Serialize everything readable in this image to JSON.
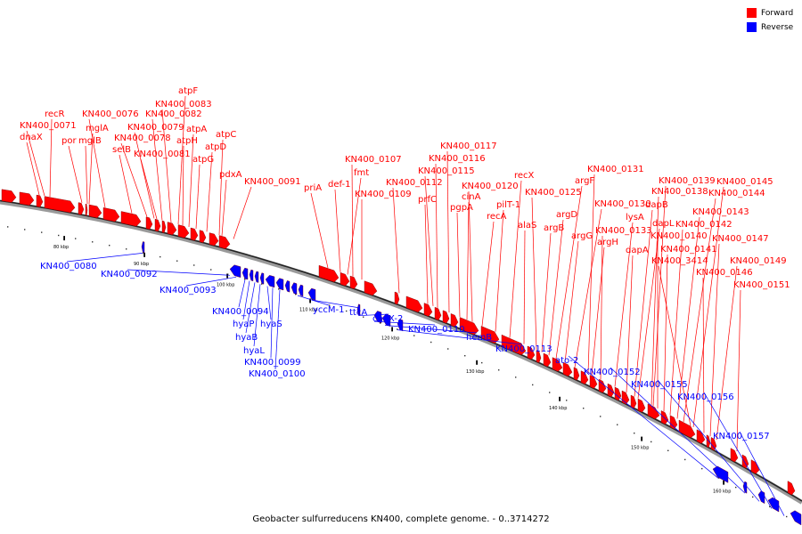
{
  "legend": {
    "forward_label": "Forward",
    "reverse_label": "Reverse",
    "forward_color": "#ff0000",
    "reverse_color": "#0000ff"
  },
  "caption": "Geobacter sulfurreducens KN400, complete genome. - 0..3714272",
  "ticks": [
    "80 kbp",
    "90 kbp",
    "100 kbp",
    "110 kbp",
    "120 kbp",
    "130 kbp",
    "140 kbp",
    "150 kbp",
    "160 kbp"
  ],
  "forward_labels": [
    "dnaX",
    "KN400_0071",
    "recR",
    "por",
    "mglB",
    "mglA",
    "KN400_0076",
    "selB",
    "KN400_0078",
    "KN400_0079",
    "KN400_0081",
    "KN400_0082",
    "KN400_0083",
    "atpF",
    "atpH",
    "atpA",
    "atpG",
    "atpD",
    "atpC",
    "pdxA",
    "KN400_0091",
    "priA",
    "def-1",
    "fmt",
    "KN400_0107",
    "KN400_0109",
    "KN400_0112",
    "prfC",
    "KN400_0115",
    "KN400_0116",
    "KN400_0117",
    "pgpA",
    "cinA",
    "KN400_0120",
    "recA",
    "pilT-1",
    "recX",
    "alaS",
    "KN400_0125",
    "argB",
    "argD",
    "argF",
    "argG",
    "KN400_0130",
    "KN400_0131",
    "argH",
    "KN400_0133",
    "lysA",
    "dapA",
    "dapB",
    "dapL",
    "KN400_0138",
    "KN400_0139",
    "KN400_0140",
    "KN400_0141",
    "KN400_0142",
    "KN400_0143",
    "KN400_0144",
    "KN400_0145",
    "KN400_3414",
    "KN400_0146",
    "KN400_0147",
    "KN400_0149",
    "KN400_0151"
  ],
  "reverse_labels": [
    "KN400_0080",
    "KN400_0092",
    "KN400_0093",
    "KN400_0094",
    "hyaP",
    "hyaB",
    "hyaL",
    "hyaS",
    "KN400_0099",
    "KN400_0100",
    "yccM-1",
    "ttcA",
    "cheX-2",
    "KN400_0110",
    "hemB",
    "KN400_0113",
    "ato-2",
    "KN400_0152",
    "KN400_0155",
    "KN400_0156",
    "KN400_0157"
  ]
}
